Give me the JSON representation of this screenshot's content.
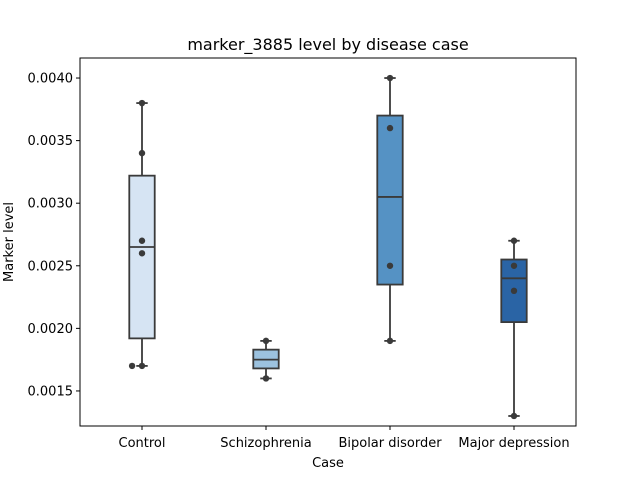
{
  "chart_data": {
    "type": "box",
    "title": "marker_3885 level by disease case",
    "xlabel": "Case",
    "ylabel": "Marker level",
    "categories": [
      "Control",
      "Schizophrenia",
      "Bipolar disorder",
      "Major depression"
    ],
    "ylim": [
      0.00122,
      0.00416
    ],
    "yticks": [
      0.0015,
      0.002,
      0.0025,
      0.003,
      0.0035,
      0.004
    ],
    "ytick_labels": [
      "0.0015",
      "0.0020",
      "0.0025",
      "0.0030",
      "0.0035",
      "0.0040"
    ],
    "grid": false,
    "boxes": [
      {
        "category": "Control",
        "whisker_low": 0.0017,
        "q1": 0.00192,
        "median": 0.00265,
        "q3": 0.00322,
        "whisker_high": 0.0038,
        "color": "#d6e4f3"
      },
      {
        "category": "Schizophrenia",
        "whisker_low": 0.0016,
        "q1": 0.00168,
        "median": 0.00175,
        "q3": 0.00183,
        "whisker_high": 0.0019,
        "color": "#9cc2df"
      },
      {
        "category": "Bipolar disorder",
        "whisker_low": 0.0019,
        "q1": 0.00235,
        "median": 0.00305,
        "q3": 0.0037,
        "whisker_high": 0.004,
        "color": "#5592c4"
      },
      {
        "category": "Major depression",
        "whisker_low": 0.0013,
        "q1": 0.00205,
        "median": 0.0024,
        "q3": 0.00255,
        "whisker_high": 0.0027,
        "color": "#2a64a5"
      }
    ],
    "points": [
      {
        "category": "Control",
        "values": [
          0.0038,
          0.0034,
          0.0027,
          0.0026,
          0.0017,
          0.0017
        ],
        "offsets": [
          0.0,
          0.0,
          0.0,
          0.0,
          -0.08,
          0.0
        ]
      },
      {
        "category": "Schizophrenia",
        "values": [
          0.0019,
          0.0016
        ],
        "offsets": [
          0.0,
          0.0
        ]
      },
      {
        "category": "Bipolar disorder",
        "values": [
          0.004,
          0.0036,
          0.0025,
          0.0019
        ],
        "offsets": [
          0.0,
          0.0,
          0.0,
          0.0
        ]
      },
      {
        "category": "Major depression",
        "values": [
          0.0027,
          0.0025,
          0.0023,
          0.0013
        ],
        "offsets": [
          0.0,
          0.0,
          0.0,
          0.0
        ]
      }
    ],
    "point_color": "#3a3a3a",
    "line_color": "#3a3a3a"
  }
}
